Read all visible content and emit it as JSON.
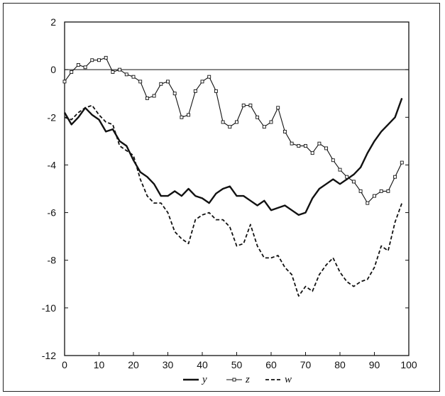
{
  "chart_data": {
    "type": "line",
    "title": "",
    "xlabel": "",
    "ylabel": "",
    "xlim": [
      0,
      100
    ],
    "ylim": [
      -12,
      2
    ],
    "x_ticks": [
      "0",
      "10",
      "20",
      "30",
      "40",
      "50",
      "60",
      "70",
      "80",
      "90",
      "100"
    ],
    "y_ticks": [
      "2",
      "0",
      "-2",
      "-4",
      "-6",
      "-8",
      "-10",
      "-12"
    ],
    "x_tick_values": [
      0,
      10,
      20,
      30,
      40,
      50,
      60,
      70,
      80,
      90,
      100
    ],
    "y_tick_values": [
      2,
      0,
      -2,
      -4,
      -6,
      -8,
      -10,
      -12
    ],
    "reference_line": {
      "y": 0
    },
    "grid": false,
    "legend_position": "bottom",
    "series": [
      {
        "name": "y",
        "style": "solid-thick",
        "color": "#111111",
        "points": [
          [
            0,
            -1.8
          ],
          [
            2,
            -2.3
          ],
          [
            4,
            -2.0
          ],
          [
            6,
            -1.6
          ],
          [
            8,
            -1.9
          ],
          [
            10,
            -2.1
          ],
          [
            12,
            -2.6
          ],
          [
            14,
            -2.5
          ],
          [
            16,
            -3.0
          ],
          [
            18,
            -3.2
          ],
          [
            20,
            -3.8
          ],
          [
            22,
            -4.3
          ],
          [
            24,
            -4.5
          ],
          [
            26,
            -4.8
          ],
          [
            28,
            -5.3
          ],
          [
            30,
            -5.3
          ],
          [
            32,
            -5.1
          ],
          [
            34,
            -5.3
          ],
          [
            36,
            -5.0
          ],
          [
            38,
            -5.3
          ],
          [
            40,
            -5.4
          ],
          [
            42,
            -5.6
          ],
          [
            44,
            -5.2
          ],
          [
            46,
            -5.0
          ],
          [
            48,
            -4.9
          ],
          [
            50,
            -5.3
          ],
          [
            52,
            -5.3
          ],
          [
            54,
            -5.5
          ],
          [
            56,
            -5.7
          ],
          [
            58,
            -5.5
          ],
          [
            60,
            -5.9
          ],
          [
            62,
            -5.8
          ],
          [
            64,
            -5.7
          ],
          [
            66,
            -5.9
          ],
          [
            68,
            -6.1
          ],
          [
            70,
            -6.0
          ],
          [
            72,
            -5.4
          ],
          [
            74,
            -5.0
          ],
          [
            76,
            -4.8
          ],
          [
            78,
            -4.6
          ],
          [
            80,
            -4.8
          ],
          [
            82,
            -4.6
          ],
          [
            84,
            -4.4
          ],
          [
            86,
            -4.1
          ],
          [
            88,
            -3.5
          ],
          [
            90,
            -3.0
          ],
          [
            92,
            -2.6
          ],
          [
            94,
            -2.3
          ],
          [
            96,
            -2.0
          ],
          [
            98,
            -1.2
          ]
        ]
      },
      {
        "name": "z",
        "style": "thin-square-markers",
        "color": "#111111",
        "points": [
          [
            0,
            -0.5
          ],
          [
            2,
            -0.1
          ],
          [
            4,
            0.2
          ],
          [
            6,
            0.1
          ],
          [
            8,
            0.4
          ],
          [
            10,
            0.4
          ],
          [
            12,
            0.5
          ],
          [
            14,
            -0.1
          ],
          [
            16,
            0.0
          ],
          [
            18,
            -0.2
          ],
          [
            20,
            -0.3
          ],
          [
            22,
            -0.5
          ],
          [
            24,
            -1.2
          ],
          [
            26,
            -1.1
          ],
          [
            28,
            -0.6
          ],
          [
            30,
            -0.5
          ],
          [
            32,
            -1.0
          ],
          [
            34,
            -2.0
          ],
          [
            36,
            -1.9
          ],
          [
            38,
            -0.9
          ],
          [
            40,
            -0.5
          ],
          [
            42,
            -0.3
          ],
          [
            44,
            -0.9
          ],
          [
            46,
            -2.2
          ],
          [
            48,
            -2.4
          ],
          [
            50,
            -2.2
          ],
          [
            52,
            -1.5
          ],
          [
            54,
            -1.5
          ],
          [
            56,
            -2.0
          ],
          [
            58,
            -2.4
          ],
          [
            60,
            -2.2
          ],
          [
            62,
            -1.6
          ],
          [
            64,
            -2.6
          ],
          [
            66,
            -3.1
          ],
          [
            68,
            -3.2
          ],
          [
            70,
            -3.2
          ],
          [
            72,
            -3.5
          ],
          [
            74,
            -3.1
          ],
          [
            76,
            -3.3
          ],
          [
            78,
            -3.8
          ],
          [
            80,
            -4.2
          ],
          [
            82,
            -4.5
          ],
          [
            84,
            -4.7
          ],
          [
            86,
            -5.1
          ],
          [
            88,
            -5.6
          ],
          [
            90,
            -5.3
          ],
          [
            92,
            -5.1
          ],
          [
            94,
            -5.1
          ],
          [
            96,
            -4.5
          ],
          [
            98,
            -3.9
          ]
        ]
      },
      {
        "name": "w",
        "style": "dashed",
        "color": "#111111",
        "points": [
          [
            0,
            -2.0
          ],
          [
            2,
            -2.1
          ],
          [
            4,
            -1.8
          ],
          [
            6,
            -1.6
          ],
          [
            8,
            -1.5
          ],
          [
            10,
            -1.9
          ],
          [
            12,
            -2.2
          ],
          [
            14,
            -2.3
          ],
          [
            16,
            -3.2
          ],
          [
            18,
            -3.4
          ],
          [
            20,
            -3.6
          ],
          [
            22,
            -4.6
          ],
          [
            24,
            -5.3
          ],
          [
            26,
            -5.6
          ],
          [
            28,
            -5.6
          ],
          [
            30,
            -6.0
          ],
          [
            32,
            -6.8
          ],
          [
            34,
            -7.1
          ],
          [
            36,
            -7.3
          ],
          [
            38,
            -6.3
          ],
          [
            40,
            -6.1
          ],
          [
            42,
            -6.0
          ],
          [
            44,
            -6.3
          ],
          [
            46,
            -6.3
          ],
          [
            48,
            -6.6
          ],
          [
            50,
            -7.4
          ],
          [
            52,
            -7.3
          ],
          [
            54,
            -6.5
          ],
          [
            56,
            -7.4
          ],
          [
            58,
            -7.9
          ],
          [
            60,
            -7.9
          ],
          [
            62,
            -7.8
          ],
          [
            64,
            -8.3
          ],
          [
            66,
            -8.6
          ],
          [
            68,
            -9.5
          ],
          [
            70,
            -9.1
          ],
          [
            72,
            -9.3
          ],
          [
            74,
            -8.6
          ],
          [
            76,
            -8.2
          ],
          [
            78,
            -7.9
          ],
          [
            80,
            -8.5
          ],
          [
            82,
            -8.9
          ],
          [
            84,
            -9.1
          ],
          [
            86,
            -8.9
          ],
          [
            88,
            -8.8
          ],
          [
            90,
            -8.3
          ],
          [
            92,
            -7.4
          ],
          [
            94,
            -7.6
          ],
          [
            96,
            -6.4
          ],
          [
            98,
            -5.6
          ]
        ]
      }
    ]
  }
}
